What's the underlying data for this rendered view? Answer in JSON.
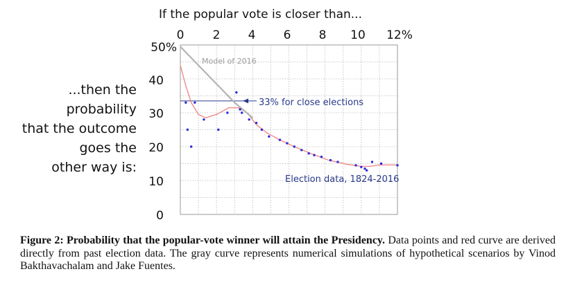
{
  "chart_data": {
    "type": "scatter",
    "title": "If the popular vote is closer than...",
    "ylabel_lines": [
      "...then the",
      "probability",
      "that the outcome",
      "goes the",
      "other way is:"
    ],
    "x_ticks": [
      "0",
      "2",
      "4",
      "6",
      "8",
      "10",
      "12%"
    ],
    "y_ticks": [
      "50%",
      "40",
      "30",
      "20",
      "10",
      "0"
    ],
    "xlim": [
      0,
      12
    ],
    "ylim": [
      0,
      50
    ],
    "grid": true,
    "series": [
      {
        "name": "Election data, 1824-2016",
        "type": "scatter",
        "color": "#2b2bd9",
        "points": [
          [
            0.3,
            33
          ],
          [
            0.4,
            25
          ],
          [
            0.6,
            20
          ],
          [
            0.8,
            33
          ],
          [
            1.3,
            28
          ],
          [
            2.1,
            25
          ],
          [
            2.6,
            30
          ],
          [
            3.1,
            36
          ],
          [
            3.3,
            31
          ],
          [
            3.4,
            30
          ],
          [
            3.8,
            28
          ],
          [
            4.2,
            27
          ],
          [
            4.5,
            25
          ],
          [
            4.9,
            23
          ],
          [
            5.5,
            22
          ],
          [
            5.9,
            21
          ],
          [
            6.3,
            20
          ],
          [
            6.7,
            19
          ],
          [
            7.1,
            18
          ],
          [
            7.4,
            17.5
          ],
          [
            7.8,
            17
          ],
          [
            8.3,
            16
          ],
          [
            8.7,
            15.5
          ],
          [
            9.7,
            14.5
          ],
          [
            10.0,
            14
          ],
          [
            10.2,
            13.5
          ],
          [
            10.3,
            13
          ],
          [
            10.6,
            15.5
          ],
          [
            11.1,
            15
          ],
          [
            12.0,
            14.5
          ]
        ]
      },
      {
        "name": "",
        "type": "line",
        "color": "#f08a8a",
        "points": [
          [
            0,
            44
          ],
          [
            0.3,
            38
          ],
          [
            0.6,
            33
          ],
          [
            1.0,
            29.5
          ],
          [
            1.4,
            28.5
          ],
          [
            2.0,
            29.5
          ],
          [
            2.7,
            31.5
          ],
          [
            3.2,
            31.5
          ],
          [
            3.7,
            30
          ],
          [
            4.2,
            26.5
          ],
          [
            4.8,
            24
          ],
          [
            5.5,
            22
          ],
          [
            6.3,
            20
          ],
          [
            7.2,
            18
          ],
          [
            8.2,
            16
          ],
          [
            9.2,
            14.8
          ],
          [
            10.0,
            14.2
          ],
          [
            10.5,
            14.2
          ],
          [
            11.0,
            14.6
          ],
          [
            12.0,
            14.6
          ]
        ]
      },
      {
        "name": "Model of 2016",
        "type": "line",
        "color": "#b4b4b4",
        "points": [
          [
            0,
            49.5
          ],
          [
            1.0,
            44
          ],
          [
            2.0,
            38.5
          ],
          [
            3.0,
            33
          ],
          [
            4.0,
            28.5
          ]
        ]
      }
    ],
    "annotations": [
      {
        "text": "Model of 2016",
        "x": 1.2,
        "y": 47
      },
      {
        "text": "33% for close elections",
        "arrow_to_x": 3.3,
        "y": 33.5
      },
      {
        "text": "Election data, 1824-2016",
        "x": 5.9,
        "y": 10.5
      }
    ],
    "reference_line_y": 33.5
  },
  "caption": {
    "bold": "Figure 2: Probability that the popular-vote winner will attain the Presidency.",
    "text": " Data points and red curve are derived directly from past election data. The gray curve represents numerical simulations of hypothetical scenarios by Vinod Bakthavachalam and Jake Fuentes."
  }
}
